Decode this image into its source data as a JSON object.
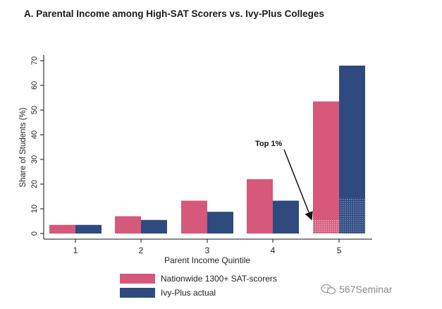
{
  "chart_data": {
    "type": "bar",
    "title": "A. Parental Income among High-SAT Scorers vs. Ivy-Plus Colleges",
    "xlabel": "Parent Income Quintile",
    "ylabel": "Share of Students (%)",
    "categories": [
      "1",
      "2",
      "3",
      "4",
      "5"
    ],
    "ylim": [
      0,
      70
    ],
    "yticks": [
      "0",
      "10",
      "20",
      "30",
      "40",
      "50",
      "60",
      "70"
    ],
    "series": [
      {
        "name": "Nationwide 1300+ SAT-scorers",
        "color": "#d6587b",
        "values": [
          3.5,
          7,
          13.3,
          22,
          53.5
        ]
      },
      {
        "name": "Ivy-Plus actual",
        "color": "#2f4a7e",
        "values": [
          3.5,
          5.5,
          8.8,
          13.3,
          68
        ]
      }
    ],
    "top1_share": [
      5.5,
      14.5
    ],
    "annotation": {
      "text": "Top 1%"
    },
    "legend_position": "bottom",
    "grid": false
  },
  "watermark": {
    "text": "567Seminar"
  }
}
